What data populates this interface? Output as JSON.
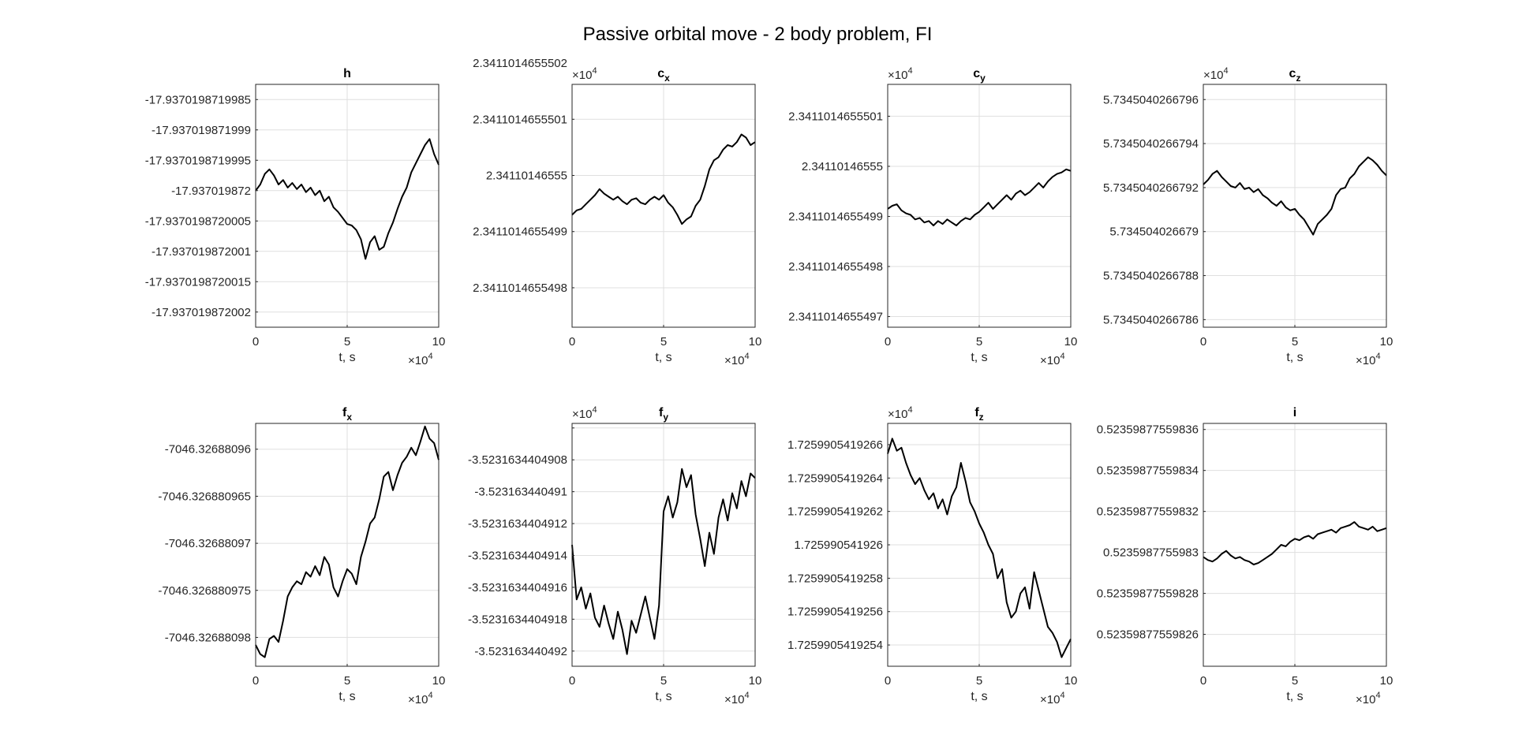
{
  "figure": {
    "title": "Passive orbital move - 2 body problem, FI",
    "trace_color": "#000000",
    "grid_color": "#dfdfdf"
  },
  "chart_data": [
    {
      "type": "line",
      "title": "h",
      "title_sub": "",
      "xlabel": "t, s",
      "x_exponent_base": "×10",
      "x_exponent": "4",
      "y_exponent_base": "",
      "y_exponent": "",
      "xlim": [
        0,
        100000
      ],
      "xticks": [
        0,
        50000,
        100000
      ],
      "xtick_labels": [
        "0",
        "5",
        "10"
      ],
      "ylim": [
        0,
        8
      ],
      "yticks": [
        0.5,
        1.5,
        2.5,
        3.5,
        4.5,
        5.5,
        6.5,
        7.5
      ],
      "ytick_labels": [
        "-17.937019872002",
        "-17.9370198720015",
        "-17.937019872001",
        "-17.9370198720005",
        "-17.937019872",
        "-17.9370198719995",
        "-17.937019871999",
        "-17.9370198719985"
      ],
      "x": [
        0,
        2500,
        5000,
        7500,
        10000,
        12500,
        15000,
        17500,
        20000,
        22500,
        25000,
        27500,
        30000,
        32500,
        35000,
        37500,
        40000,
        42500,
        45000,
        47500,
        50000,
        52500,
        55000,
        57500,
        60000,
        62500,
        65000,
        67500,
        70000,
        72500,
        75000,
        77500,
        80000,
        82500,
        85000,
        87500,
        90000,
        92500,
        95000,
        97500,
        100000
      ],
      "series": [
        {
          "values": [
            4.5,
            4.7,
            5.05,
            5.2,
            5.0,
            4.7,
            4.85,
            4.6,
            4.75,
            4.55,
            4.7,
            4.45,
            4.6,
            4.35,
            4.5,
            4.15,
            4.3,
            3.95,
            3.8,
            3.6,
            3.4,
            3.35,
            3.2,
            2.9,
            2.25,
            2.8,
            3.0,
            2.55,
            2.65,
            3.1,
            3.45,
            3.9,
            4.3,
            4.6,
            5.1,
            5.4,
            5.7,
            6.0,
            6.2,
            5.7,
            5.35
          ]
        }
      ]
    },
    {
      "type": "line",
      "title": "c",
      "title_sub": "x",
      "xlabel": "t, s",
      "x_exponent_base": "×10",
      "x_exponent": "4",
      "y_exponent_base": "×10",
      "y_exponent": "4",
      "xlim": [
        0,
        100000
      ],
      "xticks": [
        0,
        50000,
        100000
      ],
      "xtick_labels": [
        "0",
        "5",
        "10"
      ],
      "ylim": [
        0,
        8
      ],
      "yticks": [
        1.3,
        3.15,
        5.0,
        6.85
      ],
      "ytick_labels": [
        "2.3411014655498",
        "2.3411014655499",
        "2.34110146555",
        "2.3411014655501"
      ],
      "ytick_labels_top": "2.3411014655502",
      "ytick_top_pos": 8.7,
      "x": [
        0,
        2500,
        5000,
        7500,
        10000,
        12500,
        15000,
        17500,
        20000,
        22500,
        25000,
        27500,
        30000,
        32500,
        35000,
        37500,
        40000,
        42500,
        45000,
        47500,
        50000,
        52500,
        55000,
        57500,
        60000,
        62500,
        65000,
        67500,
        70000,
        72500,
        75000,
        77500,
        80000,
        82500,
        85000,
        87500,
        90000,
        92500,
        95000,
        97500,
        100000
      ],
      "series": [
        {
          "values": [
            3.7,
            3.85,
            3.9,
            4.05,
            4.2,
            4.35,
            4.55,
            4.4,
            4.3,
            4.2,
            4.3,
            4.15,
            4.05,
            4.2,
            4.25,
            4.1,
            4.05,
            4.2,
            4.3,
            4.2,
            4.35,
            4.1,
            3.95,
            3.7,
            3.4,
            3.55,
            3.65,
            4.0,
            4.2,
            4.65,
            5.2,
            5.5,
            5.6,
            5.85,
            6.0,
            5.95,
            6.1,
            6.35,
            6.25,
            6.0,
            6.1
          ]
        }
      ]
    },
    {
      "type": "line",
      "title": "c",
      "title_sub": "y",
      "xlabel": "t, s",
      "x_exponent_base": "×10",
      "x_exponent": "4",
      "y_exponent_base": "×10",
      "y_exponent": "4",
      "xlim": [
        0,
        100000
      ],
      "xticks": [
        0,
        50000,
        100000
      ],
      "xtick_labels": [
        "0",
        "5",
        "10"
      ],
      "ylim": [
        0,
        8
      ],
      "yticks": [
        0.35,
        2.0,
        3.65,
        5.3,
        6.95
      ],
      "ytick_labels": [
        "2.3411014655497",
        "2.3411014655498",
        "2.3411014655499",
        "2.34110146555",
        "2.3411014655501"
      ],
      "x": [
        0,
        2500,
        5000,
        7500,
        10000,
        12500,
        15000,
        17500,
        20000,
        22500,
        25000,
        27500,
        30000,
        32500,
        35000,
        37500,
        40000,
        42500,
        45000,
        47500,
        50000,
        52500,
        55000,
        57500,
        60000,
        62500,
        65000,
        67500,
        70000,
        72500,
        75000,
        77500,
        80000,
        82500,
        85000,
        87500,
        90000,
        92500,
        95000,
        97500,
        100000
      ],
      "series": [
        {
          "values": [
            3.9,
            4.0,
            4.05,
            3.85,
            3.75,
            3.7,
            3.55,
            3.6,
            3.45,
            3.5,
            3.35,
            3.5,
            3.4,
            3.55,
            3.45,
            3.35,
            3.5,
            3.6,
            3.55,
            3.7,
            3.8,
            3.95,
            4.1,
            3.9,
            4.05,
            4.2,
            4.35,
            4.2,
            4.4,
            4.5,
            4.35,
            4.45,
            4.6,
            4.75,
            4.6,
            4.8,
            4.95,
            5.05,
            5.1,
            5.2,
            5.15
          ]
        }
      ]
    },
    {
      "type": "line",
      "title": "c",
      "title_sub": "z",
      "xlabel": "t, s",
      "x_exponent_base": "×10",
      "x_exponent": "4",
      "y_exponent_base": "×10",
      "y_exponent": "4",
      "xlim": [
        0,
        100000
      ],
      "xticks": [
        0,
        50000,
        100000
      ],
      "xtick_labels": [
        "0",
        "5",
        "10"
      ],
      "ylim": [
        0,
        8
      ],
      "yticks": [
        0.25,
        1.7,
        3.15,
        4.6,
        6.05,
        7.5
      ],
      "ytick_labels": [
        "5.7345040266786",
        "5.7345040266788",
        "5.734504026679",
        "5.7345040266792",
        "5.7345040266794",
        "5.7345040266796"
      ],
      "x": [
        0,
        2500,
        5000,
        7500,
        10000,
        12500,
        15000,
        17500,
        20000,
        22500,
        25000,
        27500,
        30000,
        32500,
        35000,
        37500,
        40000,
        42500,
        45000,
        47500,
        50000,
        52500,
        55000,
        57500,
        60000,
        62500,
        65000,
        67500,
        70000,
        72500,
        75000,
        77500,
        80000,
        82500,
        85000,
        87500,
        90000,
        92500,
        95000,
        97500,
        100000
      ],
      "series": [
        {
          "values": [
            4.7,
            4.85,
            5.05,
            5.15,
            4.95,
            4.8,
            4.65,
            4.6,
            4.75,
            4.55,
            4.6,
            4.45,
            4.55,
            4.35,
            4.25,
            4.1,
            4.0,
            4.15,
            3.95,
            3.85,
            3.9,
            3.7,
            3.55,
            3.3,
            3.05,
            3.4,
            3.55,
            3.7,
            3.9,
            4.35,
            4.55,
            4.6,
            4.9,
            5.05,
            5.3,
            5.45,
            5.6,
            5.5,
            5.35,
            5.15,
            5.0
          ]
        }
      ]
    },
    {
      "type": "line",
      "title": "f",
      "title_sub": "x",
      "xlabel": "t, s",
      "x_exponent_base": "×10",
      "x_exponent": "4",
      "y_exponent_base": "",
      "y_exponent": "",
      "xlim": [
        0,
        100000
      ],
      "xticks": [
        0,
        50000,
        100000
      ],
      "xtick_labels": [
        "0",
        "5",
        "10"
      ],
      "ylim": [
        0,
        8
      ],
      "yticks": [
        0.95,
        2.5,
        4.05,
        5.6,
        7.15
      ],
      "ytick_labels": [
        "-7046.32688098",
        "-7046.326880975",
        "-7046.32688097",
        "-7046.326880965",
        "-7046.32688096"
      ],
      "x": [
        0,
        2500,
        5000,
        7500,
        10000,
        12500,
        15000,
        17500,
        20000,
        22500,
        25000,
        27500,
        30000,
        32500,
        35000,
        37500,
        40000,
        42500,
        45000,
        47500,
        50000,
        52500,
        55000,
        57500,
        60000,
        62500,
        65000,
        67500,
        70000,
        72500,
        75000,
        77500,
        80000,
        82500,
        85000,
        87500,
        90000,
        92500,
        95000,
        97500,
        100000
      ],
      "series": [
        {
          "values": [
            0.7,
            0.4,
            0.3,
            0.9,
            1.0,
            0.8,
            1.5,
            2.3,
            2.6,
            2.8,
            2.7,
            3.1,
            2.95,
            3.3,
            3.0,
            3.6,
            3.35,
            2.6,
            2.3,
            2.8,
            3.2,
            3.05,
            2.7,
            3.6,
            4.1,
            4.7,
            4.9,
            5.5,
            6.25,
            6.4,
            5.8,
            6.3,
            6.7,
            6.9,
            7.2,
            6.95,
            7.4,
            7.9,
            7.5,
            7.35,
            6.8
          ]
        }
      ]
    },
    {
      "type": "line",
      "title": "f",
      "title_sub": "y",
      "xlabel": "t, s",
      "x_exponent_base": "×10",
      "x_exponent": "4",
      "y_exponent_base": "×10",
      "y_exponent": "4",
      "xlim": [
        0,
        100000
      ],
      "xticks": [
        0,
        50000,
        100000
      ],
      "xtick_labels": [
        "0",
        "5",
        "10"
      ],
      "ylim": [
        0,
        8
      ],
      "yticks": [
        0.5,
        1.55,
        2.6,
        3.65,
        4.7,
        5.75,
        6.8,
        7.85
      ],
      "ytick_labels": [
        "-3.523163440492",
        "-3.5231634404918",
        "-3.5231634404916",
        "-3.5231634404914",
        "-3.5231634404912",
        "-3.523163440491",
        "-3.5231634404908",
        ""
      ],
      "x": [
        0,
        2500,
        5000,
        7500,
        10000,
        12500,
        15000,
        17500,
        20000,
        22500,
        25000,
        27500,
        30000,
        32500,
        35000,
        37500,
        40000,
        42500,
        45000,
        47500,
        50000,
        52500,
        55000,
        57500,
        60000,
        62500,
        65000,
        67500,
        70000,
        72500,
        75000,
        77500,
        80000,
        82500,
        85000,
        87500,
        90000,
        92500,
        95000,
        97500,
        100000
      ],
      "series": [
        {
          "values": [
            4.0,
            2.2,
            2.6,
            1.9,
            2.4,
            1.6,
            1.3,
            2.0,
            1.4,
            0.9,
            1.8,
            1.2,
            0.4,
            1.5,
            1.1,
            1.7,
            2.3,
            1.6,
            0.9,
            2.0,
            5.1,
            5.6,
            4.9,
            5.4,
            6.5,
            5.9,
            6.3,
            5.0,
            4.2,
            3.3,
            4.4,
            3.7,
            4.9,
            5.5,
            4.8,
            5.7,
            5.2,
            6.1,
            5.6,
            6.35,
            6.2
          ]
        }
      ]
    },
    {
      "type": "line",
      "title": "f",
      "title_sub": "z",
      "xlabel": "t, s",
      "x_exponent_base": "×10",
      "x_exponent": "4",
      "y_exponent_base": "×10",
      "y_exponent": "4",
      "xlim": [
        0,
        100000
      ],
      "xticks": [
        0,
        50000,
        100000
      ],
      "xtick_labels": [
        "0",
        "5",
        "10"
      ],
      "ylim": [
        0,
        8
      ],
      "yticks": [
        0.7,
        1.8,
        2.9,
        4.0,
        5.1,
        6.2,
        7.3
      ],
      "ytick_labels": [
        "1.7259905419254",
        "1.7259905419256",
        "1.7259905419258",
        "1.725990541926",
        "1.7259905419262",
        "1.7259905419264",
        "1.7259905419266"
      ],
      "x": [
        0,
        2500,
        5000,
        7500,
        10000,
        12500,
        15000,
        17500,
        20000,
        22500,
        25000,
        27500,
        30000,
        32500,
        35000,
        37500,
        40000,
        42500,
        45000,
        47500,
        50000,
        52500,
        55000,
        57500,
        60000,
        62500,
        65000,
        67500,
        70000,
        72500,
        75000,
        77500,
        80000,
        82500,
        85000,
        87500,
        90000,
        92500,
        95000,
        97500,
        100000
      ],
      "series": [
        {
          "values": [
            7.0,
            7.5,
            7.1,
            7.2,
            6.7,
            6.3,
            6.0,
            6.2,
            5.8,
            5.5,
            5.7,
            5.2,
            5.5,
            5.0,
            5.6,
            5.9,
            6.7,
            6.1,
            5.4,
            5.1,
            4.7,
            4.4,
            4.0,
            3.7,
            2.9,
            3.2,
            2.1,
            1.6,
            1.8,
            2.4,
            2.6,
            1.9,
            3.1,
            2.5,
            1.9,
            1.3,
            1.1,
            0.8,
            0.3,
            0.6,
            0.9
          ]
        }
      ]
    },
    {
      "type": "line",
      "title": "i",
      "title_sub": "",
      "xlabel": "t, s",
      "x_exponent_base": "×10",
      "x_exponent": "4",
      "y_exponent_base": "",
      "y_exponent": "",
      "xlim": [
        0,
        100000
      ],
      "xticks": [
        0,
        50000,
        100000
      ],
      "xtick_labels": [
        "0",
        "5",
        "10"
      ],
      "ylim": [
        0,
        8
      ],
      "yticks": [
        1.05,
        2.4,
        3.75,
        5.1,
        6.45,
        7.8
      ],
      "ytick_labels": [
        "0.52359877559826",
        "0.52359877559828",
        "0.5235987755983",
        "0.52359877559832",
        "0.52359877559834",
        "0.52359877559836"
      ],
      "x": [
        0,
        2500,
        5000,
        7500,
        10000,
        12500,
        15000,
        17500,
        20000,
        22500,
        25000,
        27500,
        30000,
        32500,
        35000,
        37500,
        40000,
        42500,
        45000,
        47500,
        50000,
        52500,
        55000,
        57500,
        60000,
        62500,
        65000,
        67500,
        70000,
        72500,
        75000,
        77500,
        80000,
        82500,
        85000,
        87500,
        90000,
        92500,
        95000,
        97500,
        100000
      ],
      "series": [
        {
          "values": [
            3.6,
            3.5,
            3.45,
            3.55,
            3.7,
            3.8,
            3.65,
            3.55,
            3.6,
            3.5,
            3.45,
            3.35,
            3.4,
            3.5,
            3.6,
            3.7,
            3.85,
            4.0,
            3.95,
            4.1,
            4.2,
            4.15,
            4.25,
            4.3,
            4.2,
            4.35,
            4.4,
            4.45,
            4.5,
            4.4,
            4.55,
            4.6,
            4.65,
            4.75,
            4.6,
            4.55,
            4.5,
            4.6,
            4.45,
            4.5,
            4.55
          ]
        }
      ]
    }
  ]
}
